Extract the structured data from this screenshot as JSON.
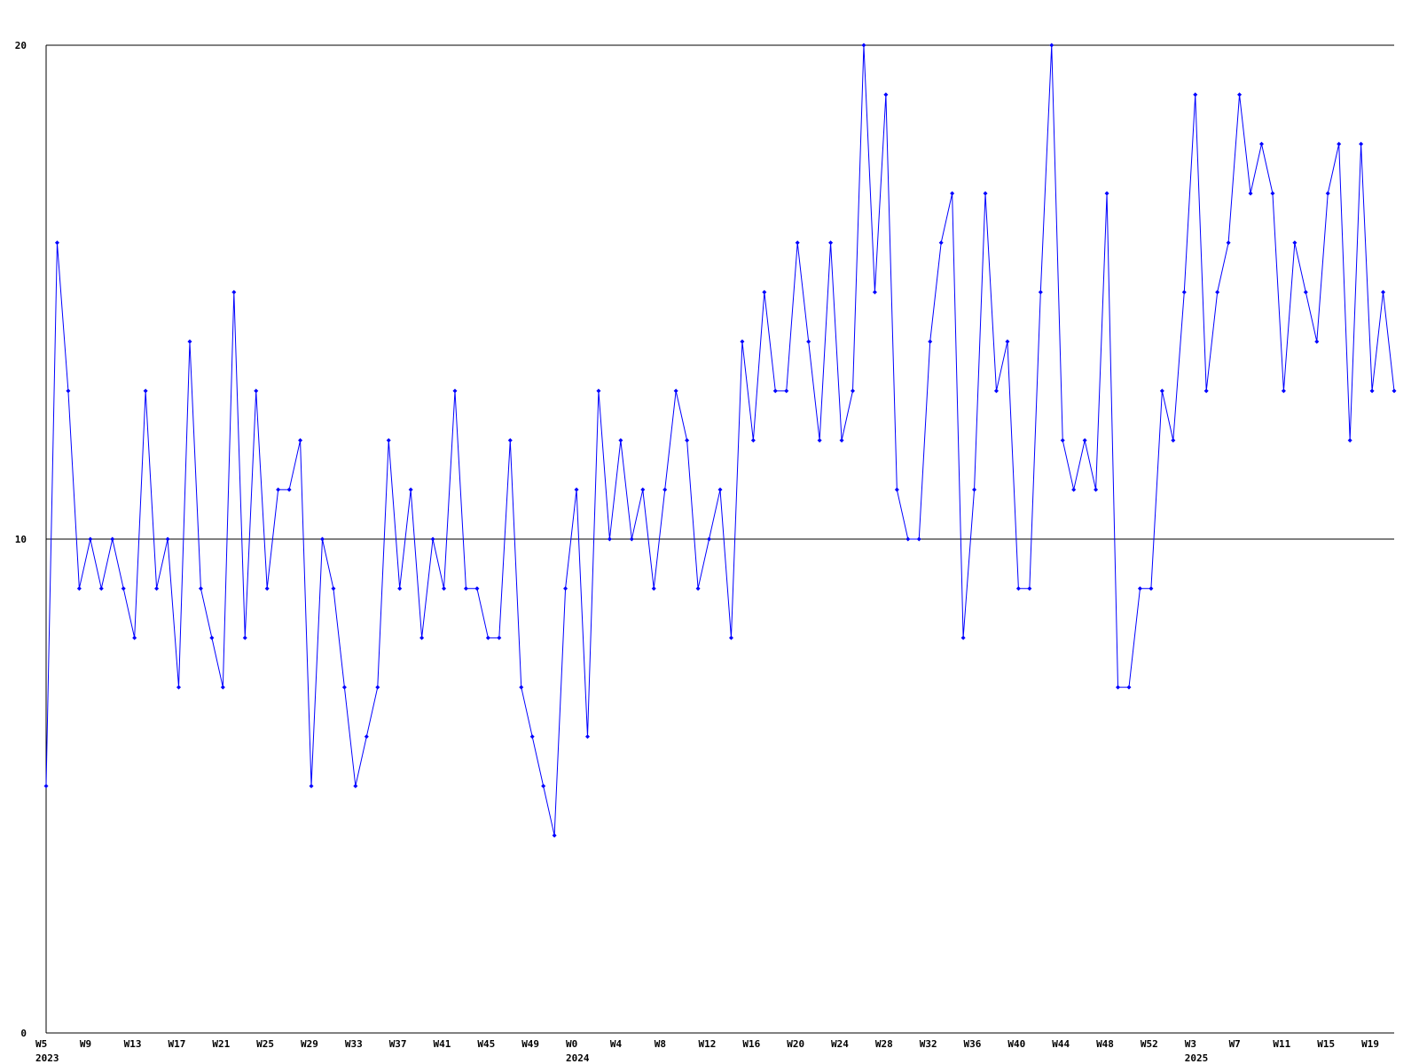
{
  "chart_data": {
    "type": "line",
    "categories": [
      "W5",
      null,
      null,
      null,
      "W9",
      null,
      null,
      null,
      "W13",
      null,
      null,
      null,
      "W17",
      null,
      null,
      null,
      "W21",
      null,
      null,
      null,
      "W25",
      null,
      null,
      null,
      "W29",
      null,
      null,
      null,
      "W33",
      null,
      null,
      null,
      "W37",
      null,
      null,
      null,
      "W41",
      null,
      null,
      null,
      "W45",
      null,
      null,
      null,
      "W49",
      null,
      null,
      null,
      "W0",
      null,
      null,
      null,
      "W4",
      null,
      null,
      null,
      "W8",
      null,
      null,
      null,
      "W12",
      null,
      null,
      null,
      "W16",
      null,
      null,
      null,
      "W20",
      null,
      null,
      null,
      "W24",
      null,
      null,
      null,
      "W28",
      null,
      null,
      null,
      "W32",
      null,
      null,
      null,
      "W36",
      null,
      null,
      null,
      "W40",
      null,
      null,
      null,
      "W44",
      null,
      null,
      null,
      "W48",
      null,
      null,
      null,
      "W52",
      null,
      null,
      null,
      "W3",
      null,
      null,
      null,
      "W7",
      null,
      null,
      null,
      "W11",
      null,
      null,
      null,
      "W15",
      null,
      null,
      null,
      "W19",
      null,
      null
    ],
    "category_years": [
      "2023",
      null,
      null,
      null,
      null,
      null,
      null,
      null,
      null,
      null,
      null,
      null,
      null,
      null,
      null,
      null,
      null,
      null,
      null,
      null,
      null,
      null,
      null,
      null,
      null,
      null,
      null,
      null,
      null,
      null,
      null,
      null,
      null,
      null,
      null,
      null,
      null,
      null,
      null,
      null,
      null,
      null,
      null,
      null,
      null,
      null,
      null,
      null,
      "2024",
      null,
      null,
      null,
      null,
      null,
      null,
      null,
      null,
      null,
      null,
      null,
      null,
      null,
      null,
      null,
      null,
      null,
      null,
      null,
      null,
      null,
      null,
      null,
      null,
      null,
      null,
      null,
      null,
      null,
      null,
      null,
      null,
      null,
      null,
      null,
      null,
      null,
      null,
      null,
      null,
      null,
      null,
      null,
      null,
      null,
      null,
      null,
      null,
      null,
      null,
      null,
      null,
      null,
      null,
      null,
      "2025",
      null,
      null,
      null,
      null,
      null,
      null,
      null,
      null,
      null,
      null,
      null,
      null,
      null,
      null,
      null,
      null,
      null,
      null
    ],
    "series": [
      {
        "color": "#0000ff",
        "values": [
          5,
          16,
          13,
          9,
          10,
          9,
          10,
          9,
          8,
          13,
          9,
          10,
          7,
          14,
          9,
          8,
          7,
          15,
          8,
          13,
          9,
          11,
          11,
          12,
          5,
          10,
          9,
          7,
          5,
          6,
          7,
          12,
          9,
          11,
          8,
          10,
          9,
          13,
          9,
          9,
          8,
          8,
          12,
          7,
          6,
          5,
          4,
          9,
          11,
          6,
          13,
          10,
          12,
          10,
          11,
          9,
          11,
          13,
          12,
          9,
          10,
          11,
          8,
          14,
          12,
          15,
          13,
          13,
          16,
          14,
          12,
          16,
          12,
          13,
          20,
          15,
          19,
          11,
          10,
          10,
          14,
          16,
          17,
          8,
          11,
          17,
          13,
          14,
          9,
          9,
          15,
          20,
          12,
          11,
          12,
          11,
          17,
          7,
          7,
          9,
          9,
          13,
          12,
          15,
          19,
          13,
          15,
          16,
          19,
          17,
          18,
          17,
          13,
          16,
          15,
          14,
          17,
          18,
          12,
          18,
          13,
          15,
          13
        ]
      }
    ],
    "ylim": [
      0,
      20
    ],
    "yticks": [
      0,
      10,
      20
    ],
    "grid": true
  }
}
